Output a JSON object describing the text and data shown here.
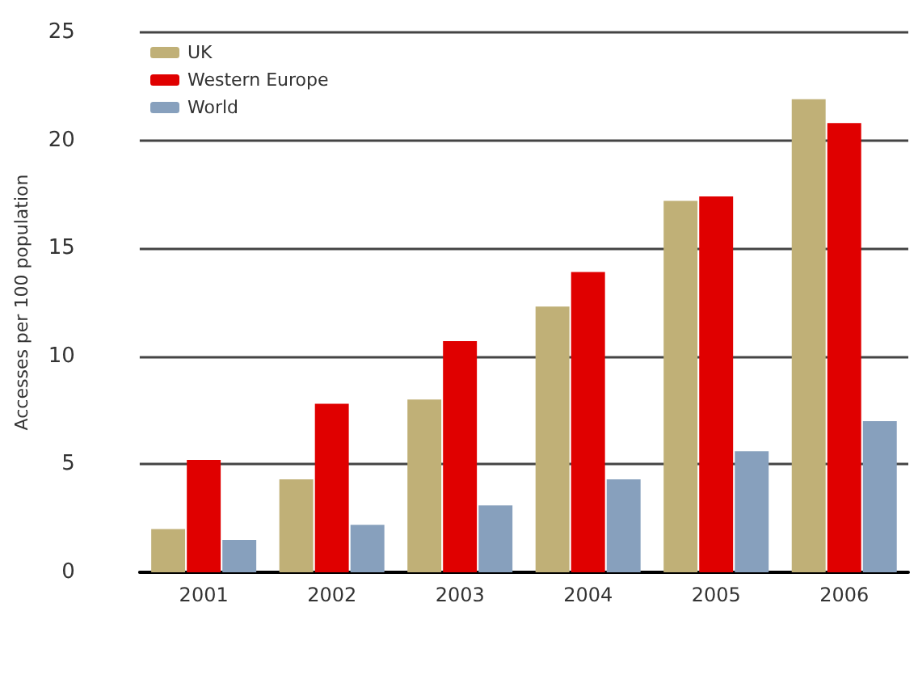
{
  "chart_data": {
    "type": "bar",
    "ylabel": "Accesses per 100 population",
    "categories": [
      "2001",
      "2002",
      "2003",
      "2004",
      "2005",
      "2006"
    ],
    "series": [
      {
        "name": "UK",
        "color": "#c0b077",
        "values": [
          2.0,
          4.3,
          8.0,
          12.3,
          17.2,
          21.9
        ]
      },
      {
        "name": "Western Europe",
        "color": "#e00000",
        "values": [
          5.2,
          7.8,
          10.7,
          13.9,
          17.4,
          20.8
        ]
      },
      {
        "name": "World",
        "color": "#87a0bd",
        "values": [
          1.5,
          2.2,
          3.1,
          4.3,
          5.6,
          7.0
        ]
      }
    ],
    "ylim": [
      0,
      25
    ],
    "yticks": [
      0,
      5,
      10,
      15,
      20,
      25
    ],
    "grid": "y",
    "legend": "top left"
  }
}
